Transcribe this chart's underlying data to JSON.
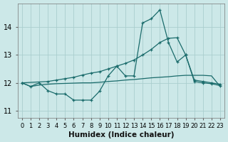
{
  "xlabel": "Humidex (Indice chaleur)",
  "bg_color": "#cce8e8",
  "grid_color": "#aacece",
  "line_color": "#1a6b6b",
  "xlim": [
    -0.5,
    23.5
  ],
  "ylim": [
    10.75,
    14.85
  ],
  "yticks": [
    11,
    12,
    13,
    14
  ],
  "xticks": [
    0,
    1,
    2,
    3,
    4,
    5,
    6,
    7,
    8,
    9,
    10,
    11,
    12,
    13,
    14,
    15,
    16,
    17,
    18,
    19,
    20,
    21,
    22,
    23
  ],
  "curve_upper_x": [
    0,
    1,
    2,
    3,
    4,
    5,
    6,
    7,
    8,
    9,
    10,
    11,
    12,
    13,
    14,
    15,
    16,
    17,
    18,
    19,
    20,
    21,
    22,
    23
  ],
  "curve_upper_y": [
    12.0,
    11.87,
    12.0,
    11.72,
    11.6,
    11.6,
    11.38,
    11.38,
    11.38,
    11.7,
    12.25,
    12.6,
    12.25,
    12.25,
    14.15,
    14.3,
    14.62,
    13.45,
    12.75,
    13.0,
    12.05,
    12.0,
    11.97,
    11.9
  ],
  "curve_mid_x": [
    0,
    3,
    4,
    5,
    6,
    7,
    8,
    9,
    10,
    11,
    12,
    13,
    14,
    15,
    16,
    17,
    18,
    19,
    20,
    21,
    22,
    23
  ],
  "curve_mid_y": [
    12.0,
    12.05,
    12.1,
    12.15,
    12.2,
    12.28,
    12.35,
    12.4,
    12.5,
    12.6,
    12.7,
    12.82,
    13.0,
    13.2,
    13.45,
    13.6,
    13.62,
    13.0,
    12.1,
    12.05,
    12.0,
    11.95
  ],
  "curve_low_x": [
    0,
    1,
    2,
    3,
    4,
    5,
    6,
    7,
    8,
    9,
    10,
    11,
    12,
    13,
    14,
    15,
    16,
    17,
    18,
    19,
    20,
    21,
    22,
    23
  ],
  "curve_low_y": [
    12.0,
    11.87,
    11.92,
    11.95,
    11.97,
    11.98,
    11.99,
    12.0,
    12.0,
    12.02,
    12.05,
    12.07,
    12.1,
    12.12,
    12.15,
    12.18,
    12.2,
    12.22,
    12.25,
    12.27,
    12.27,
    12.27,
    12.25,
    11.87
  ]
}
